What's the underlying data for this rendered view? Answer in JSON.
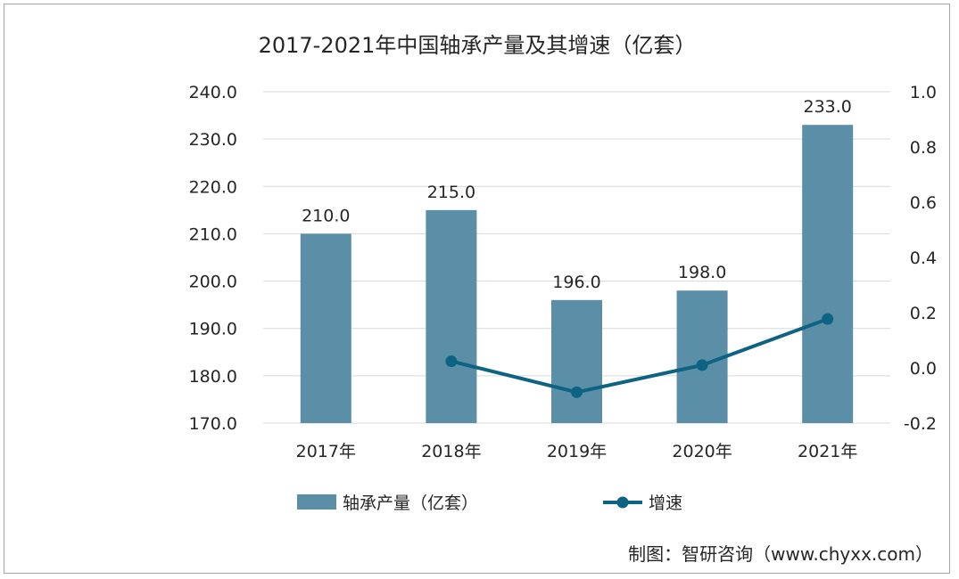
{
  "chart_data": {
    "type": "bar",
    "title": "2017-2021年中国轴承产量及其增速（亿套）",
    "categories": [
      "2017年",
      "2018年",
      "2019年",
      "2020年",
      "2021年"
    ],
    "series": [
      {
        "name": "轴承产量（亿套）",
        "type": "bar",
        "axis": "left",
        "values": [
          210.0,
          215.0,
          196.0,
          198.0,
          233.0
        ],
        "value_labels": [
          "210.0",
          "215.0",
          "196.0",
          "198.0",
          "233.0"
        ],
        "color": "#5b8fa8"
      },
      {
        "name": "增速",
        "type": "line",
        "axis": "right",
        "values": [
          null,
          0.024,
          -0.088,
          0.01,
          0.177
        ],
        "color": "#0e6382"
      }
    ],
    "y_left": {
      "lim": [
        170,
        240
      ],
      "ticks": [
        "170.0",
        "180.0",
        "190.0",
        "200.0",
        "210.0",
        "220.0",
        "230.0",
        "240.0"
      ]
    },
    "y_right": {
      "lim": [
        -0.2,
        1.0
      ],
      "ticks": [
        "-0.2",
        "0.0",
        "0.2",
        "0.4",
        "0.6",
        "0.8",
        "1.0"
      ]
    },
    "grid": true,
    "legend_position": "bottom"
  },
  "source_text": "制图：智研咨询（www.chyxx.com）"
}
